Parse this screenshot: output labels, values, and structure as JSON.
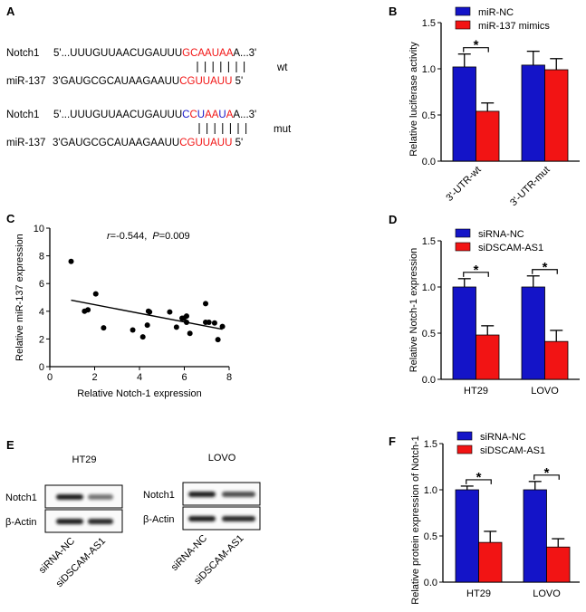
{
  "colors": {
    "blue": "#1414c8",
    "red": "#f21414",
    "text": "#000000"
  },
  "panel_a": {
    "label": "A",
    "wt": {
      "tag": "wt",
      "notch1": {
        "name": "Notch1",
        "segments": [
          {
            "t": "5'...UUUGUUAACUGAUUU",
            "c": "text"
          },
          {
            "t": "GCAAUAA",
            "c": "red"
          },
          {
            "t": "A...3'",
            "c": "text"
          }
        ]
      },
      "mir": {
        "name": "miR-137",
        "segments": [
          {
            "t": "3'GAUGCGCAUAAGAAUU",
            "c": "text"
          },
          {
            "t": "CGUUAUU",
            "c": "red"
          },
          {
            "t": " 5'",
            "c": "text"
          }
        ]
      }
    },
    "mut": {
      "tag": "mut",
      "notch1": {
        "name": "Notch1",
        "segments": [
          {
            "t": "5'...UUUGUUAACUGAUUU",
            "c": "text"
          },
          {
            "t": "C",
            "c": "blue"
          },
          {
            "t": "C",
            "c": "red"
          },
          {
            "t": "U",
            "c": "blue"
          },
          {
            "t": "AA",
            "c": "red"
          },
          {
            "t": "U",
            "c": "blue"
          },
          {
            "t": "A",
            "c": "red"
          },
          {
            "t": "A...3'",
            "c": "text"
          }
        ]
      },
      "mir": {
        "name": "miR-137",
        "segments": [
          {
            "t": "3'GAUGCGCAUAAGAAUU",
            "c": "text"
          },
          {
            "t": "CGUUAUU",
            "c": "red"
          },
          {
            "t": " 5'",
            "c": "text"
          }
        ]
      }
    }
  },
  "panel_e": {
    "label": "E",
    "blots": [
      {
        "cell": "HT29",
        "rows": [
          {
            "name": "Notch1",
            "intensity": [
              1.0,
              0.45
            ]
          },
          {
            "name": "β-Actin",
            "intensity": [
              1.0,
              0.95
            ]
          }
        ],
        "lanes": [
          "siRNA-NC",
          "siDSCAM-AS1"
        ]
      },
      {
        "cell": "LOVO",
        "rows": [
          {
            "name": "Notch1",
            "intensity": [
              1.0,
              0.7
            ]
          },
          {
            "name": "β-Actin",
            "intensity": [
              1.0,
              0.95
            ]
          }
        ],
        "lanes": [
          "siRNA-NC",
          "siDSCAM-AS1"
        ]
      }
    ]
  },
  "chart_data": [
    {
      "panel": "B",
      "type": "bar",
      "categories": [
        "3'-UTR-wt",
        "3'-UTR-mut"
      ],
      "series": [
        {
          "name": "miR-NC",
          "color": "blue",
          "values": [
            1.02,
            1.04
          ],
          "errors": [
            0.14,
            0.15
          ]
        },
        {
          "name": "miR-137 mimics",
          "color": "red",
          "values": [
            0.54,
            0.99
          ],
          "errors": [
            0.09,
            0.12
          ]
        }
      ],
      "significance": [
        "*",
        ""
      ],
      "xlabel": "",
      "ylabel": "Relative luciferase activity",
      "ylim": [
        0,
        1.5
      ],
      "yticks": [
        "0.0",
        "0.5",
        "1.0",
        "1.5"
      ],
      "xlabels_rotated": true,
      "legend": "top"
    },
    {
      "panel": "C",
      "type": "scatter",
      "annotation": {
        "r_label": "r",
        "r_text": "=-0.544,",
        "p_label": "P",
        "p_text": "=0.009"
      },
      "points": [
        [
          0.95,
          7.6
        ],
        [
          1.55,
          4.0
        ],
        [
          1.7,
          4.1
        ],
        [
          2.05,
          5.25
        ],
        [
          2.4,
          2.8
        ],
        [
          3.7,
          2.65
        ],
        [
          4.15,
          2.15
        ],
        [
          4.35,
          3.0
        ],
        [
          4.4,
          4.0
        ],
        [
          4.45,
          3.95
        ],
        [
          5.35,
          3.95
        ],
        [
          5.65,
          2.85
        ],
        [
          5.9,
          3.5
        ],
        [
          5.98,
          3.5
        ],
        [
          6.1,
          3.65
        ],
        [
          6.1,
          3.2
        ],
        [
          6.25,
          2.4
        ],
        [
          6.95,
          4.55
        ],
        [
          6.95,
          3.2
        ],
        [
          7.1,
          3.2
        ],
        [
          7.35,
          3.15
        ],
        [
          7.5,
          1.95
        ],
        [
          7.7,
          2.9
        ]
      ],
      "fit_line": [
        [
          0.95,
          4.8
        ],
        [
          7.7,
          2.7
        ]
      ],
      "xlabel": "Relative Notch-1 expression",
      "ylabel": "Relative miR-137 expression",
      "xlim": [
        0,
        8
      ],
      "ylim": [
        0,
        10
      ],
      "xticks": [
        "0",
        "2",
        "4",
        "6",
        "8"
      ],
      "yticks": [
        "0",
        "2",
        "4",
        "6",
        "8",
        "10"
      ]
    },
    {
      "panel": "D",
      "type": "bar",
      "categories": [
        "HT29",
        "LOVO"
      ],
      "series": [
        {
          "name": "siRNA-NC",
          "color": "blue",
          "values": [
            1.0,
            1.0
          ],
          "errors": [
            0.09,
            0.12
          ]
        },
        {
          "name": "siDSCAM-AS1",
          "color": "red",
          "values": [
            0.48,
            0.41
          ],
          "errors": [
            0.1,
            0.12
          ]
        }
      ],
      "significance": [
        "*",
        "*"
      ],
      "xlabel": "",
      "ylabel": "Relative Notch-1 expression",
      "ylim": [
        0,
        1.5
      ],
      "yticks": [
        "0.0",
        "0.5",
        "1.0",
        "1.5"
      ],
      "xlabels_rotated": false,
      "legend": "top"
    },
    {
      "panel": "F",
      "type": "bar",
      "categories": [
        "HT29",
        "LOVO"
      ],
      "series": [
        {
          "name": "siRNA-NC",
          "color": "blue",
          "values": [
            1.0,
            1.0
          ],
          "errors": [
            0.04,
            0.09
          ]
        },
        {
          "name": "siDSCAM-AS1",
          "color": "red",
          "values": [
            0.43,
            0.38
          ],
          "errors": [
            0.12,
            0.09
          ]
        }
      ],
      "significance": [
        "*",
        "*"
      ],
      "xlabel": "",
      "ylabel": "Relative protein expression of Notch-1",
      "ylim": [
        0,
        1.5
      ],
      "yticks": [
        "0.0",
        "0.5",
        "1.0",
        "1.5"
      ],
      "xlabels_rotated": false,
      "legend": "top"
    }
  ]
}
